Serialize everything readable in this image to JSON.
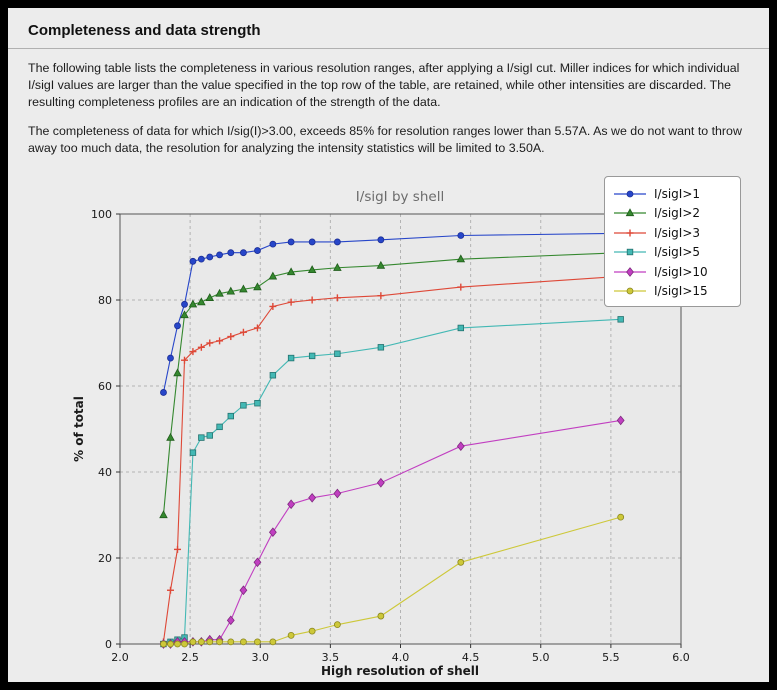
{
  "header": {
    "title": "Completeness and data strength"
  },
  "paragraphs": [
    "The following table lists the completeness in various resolution ranges, after applying a I/sigI cut. Miller indices for which individual I/sigI values are larger than the value specified in the top row of the table, are retained, while other intensities are discarded. The resulting completeness profiles are an indication of the strength of the data.",
    "The completeness of data for which I/sig(I)>3.00, exceeds  85% for resolution ranges lower than 5.57A. As we do not want to throw away too much data, the resolution for analyzing the intensity statistics will be limited to 3.50A."
  ],
  "colors": {
    "frame": "#000000",
    "page_bg": "#ececec",
    "plot_bg": "#e9e9e9",
    "grid": "#b3b3b3",
    "axis_border": "#555555",
    "tick": "#333333",
    "legend_bg": "#ffffff",
    "legend_border": "#999999"
  },
  "chart_data": {
    "type": "line",
    "title": "I/sigI by shell",
    "xlabel": "High resolution of shell",
    "ylabel": "% of total",
    "xlim": [
      2.0,
      6.0
    ],
    "ylim": [
      0,
      100
    ],
    "xticks": [
      2.0,
      2.5,
      3.0,
      3.5,
      4.0,
      4.5,
      5.0,
      5.5,
      6.0
    ],
    "yticks": [
      0,
      20,
      40,
      60,
      80,
      100
    ],
    "grid": "dashed",
    "legend_position": "upper right",
    "x": [
      2.31,
      2.36,
      2.41,
      2.46,
      2.52,
      2.58,
      2.64,
      2.71,
      2.79,
      2.88,
      2.98,
      3.09,
      3.22,
      3.37,
      3.55,
      3.86,
      4.43,
      5.57
    ],
    "series": [
      {
        "name": "I/sigI>1",
        "color": "#2746c9",
        "edge": "#1c2f96",
        "marker": "circle",
        "values": [
          58.5,
          66.5,
          74,
          79,
          89,
          89.5,
          90,
          90.5,
          91,
          91,
          91.5,
          93,
          93.5,
          93.5,
          93.5,
          94,
          95,
          95.5
        ]
      },
      {
        "name": "I/sigI>2",
        "color": "#35882f",
        "edge": "#1f5c1b",
        "marker": "triangle",
        "values": [
          30,
          48,
          63,
          76.5,
          79,
          79.5,
          80.5,
          81.5,
          82,
          82.5,
          83,
          85.5,
          86.5,
          87,
          87.5,
          88,
          89.5,
          91
        ]
      },
      {
        "name": "I/sigI>3",
        "color": "#de4837",
        "edge": "#de4837",
        "marker": "plus",
        "values": [
          0.5,
          12.5,
          22,
          66,
          68,
          69,
          70,
          70.5,
          71.5,
          72.5,
          73.5,
          78.5,
          79.5,
          80,
          80.5,
          81,
          83,
          85.5
        ]
      },
      {
        "name": "I/sigI>5",
        "color": "#43b8b4",
        "edge": "#23726f",
        "marker": "square",
        "values": [
          0,
          0.5,
          1,
          1.5,
          44.5,
          48,
          48.5,
          50.5,
          53,
          55.5,
          56,
          62.5,
          66.5,
          67,
          67.5,
          69,
          73.5,
          75.5
        ]
      },
      {
        "name": "I/sigI>10",
        "color": "#c13fc1",
        "edge": "#7e2a7e",
        "marker": "diamond",
        "values": [
          0,
          0,
          0.5,
          0.5,
          0.5,
          0.5,
          1,
          1,
          5.5,
          12.5,
          19,
          26,
          32.5,
          34,
          35,
          37.5,
          46,
          52
        ]
      },
      {
        "name": "I/sigI>15",
        "color": "#cdc839",
        "edge": "#8a861f",
        "marker": "circle",
        "values": [
          0,
          0,
          0,
          0,
          0.5,
          0.5,
          0.5,
          0.5,
          0.5,
          0.5,
          0.5,
          0.5,
          2,
          3,
          4.5,
          6.5,
          19,
          29.5
        ]
      }
    ]
  }
}
